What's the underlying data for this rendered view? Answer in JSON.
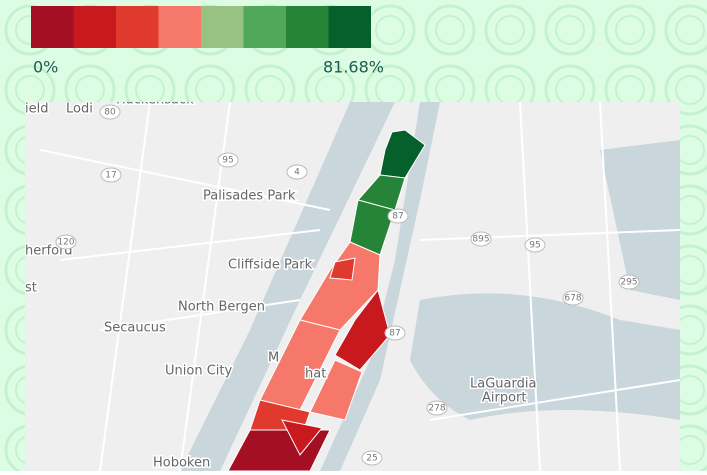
{
  "legend": {
    "colors": [
      "#a50f24",
      "#c8191e",
      "#e0392d",
      "#f6786a",
      "#97c282",
      "#52a85a",
      "#258438",
      "#05602b"
    ],
    "min_label": "0%",
    "max_label": "81.68%"
  },
  "map": {
    "places": [
      "Lodi",
      "Hackensack",
      "ield",
      "Palisades Park",
      "Cliffside Park",
      "North Bergen",
      "Secaucus",
      "Union City",
      "Hoboken",
      "LaGuardia",
      "Airport",
      "herford",
      "st",
      "M",
      "hat"
    ],
    "shields": [
      "80",
      "95",
      "4",
      "17",
      "120",
      "895",
      "95",
      "678",
      "295",
      "278",
      "25",
      "87",
      "87"
    ]
  }
}
